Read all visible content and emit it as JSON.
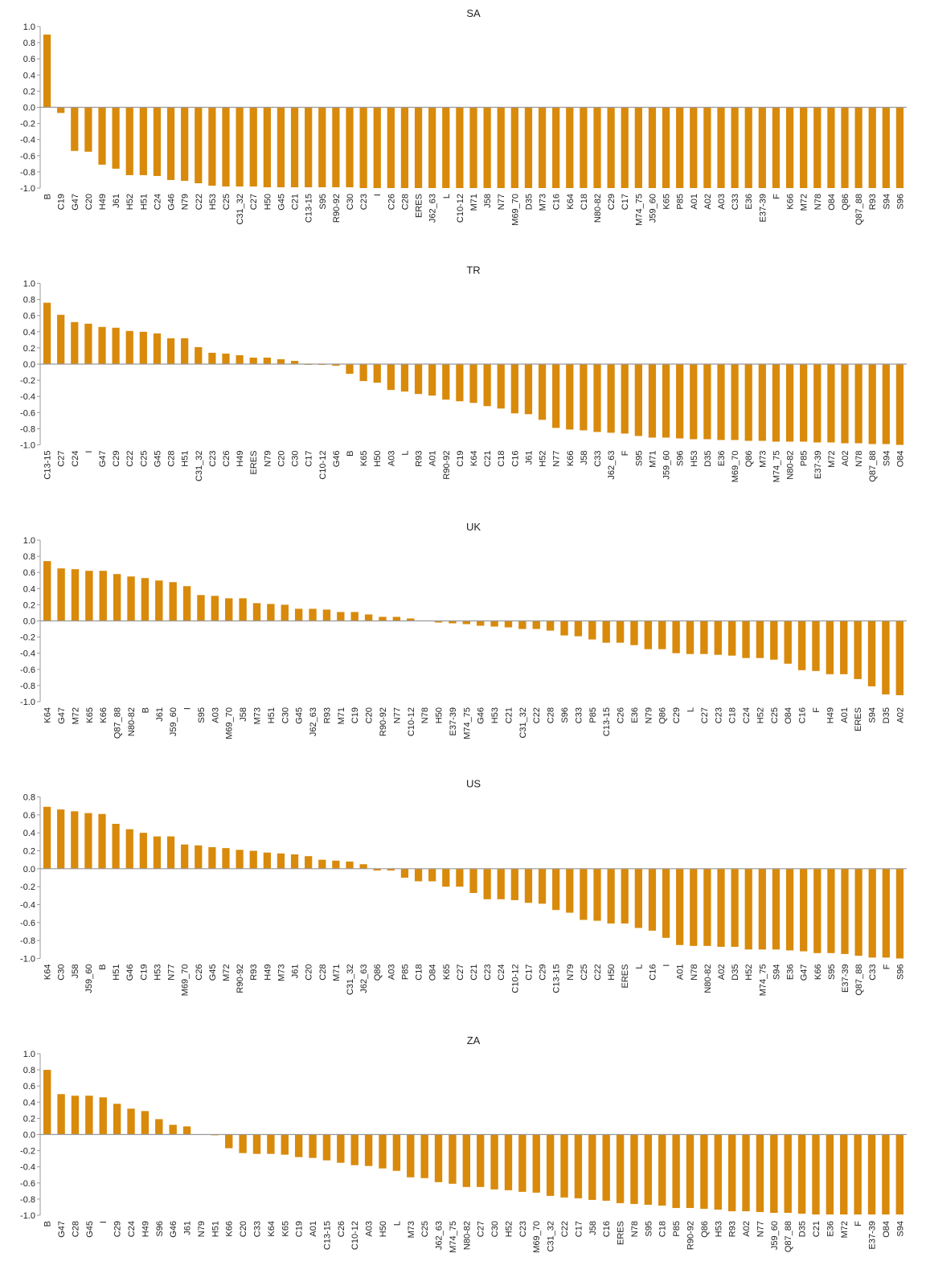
{
  "chart_data": [
    {
      "type": "bar",
      "title": "SA",
      "color": "#d98a0b",
      "categories": [
        "B",
        "C19",
        "G47",
        "C20",
        "H49",
        "J61",
        "H52",
        "H51",
        "C24",
        "G46",
        "N79",
        "C22",
        "H53",
        "C25",
        "C31_32",
        "C27",
        "H50",
        "G45",
        "C21",
        "C13-15",
        "S95",
        "R90-92",
        "C30",
        "C23",
        "I",
        "C26",
        "C28",
        "ERES",
        "J62_63",
        "L",
        "C10-12",
        "M71",
        "J58",
        "N77",
        "M69_70",
        "D35",
        "M73",
        "C16",
        "K64",
        "C18",
        "N80-82",
        "C29",
        "C17",
        "M74_75",
        "J59_60",
        "K65",
        "P85",
        "A01",
        "A02",
        "A03",
        "C33",
        "E36",
        "E37-39",
        "F",
        "K66",
        "M72",
        "N78",
        "O84",
        "Q86",
        "Q87_88",
        "R93",
        "S94",
        "S96"
      ],
      "values": [
        0.9,
        -0.07,
        -0.54,
        -0.55,
        -0.71,
        -0.76,
        -0.84,
        -0.84,
        -0.85,
        -0.9,
        -0.91,
        -0.94,
        -0.97,
        -0.98,
        -0.98,
        -0.98,
        -0.99,
        -0.99,
        -0.99,
        -0.99,
        -0.99,
        -0.99,
        -0.99,
        -1.0,
        -1.0,
        -1.0,
        -1.0,
        -1.0,
        -1.0,
        -1.0,
        -1.0,
        -1.0,
        -1.0,
        -1.0,
        -1.0,
        -1.0,
        -1.0,
        -1.0,
        -1.0,
        -1.0,
        -1.0,
        -1.0,
        -1.0,
        -1.0,
        -1.0,
        -1.0,
        -1.0,
        -1.0,
        -1.0,
        -1.0,
        -1.0,
        -1.0,
        -1.0,
        -1.0,
        -1.0,
        -1.0,
        -1.0,
        -1.0,
        -1.0,
        -1.0,
        -1.0,
        -1.0,
        -1.0
      ],
      "ylim": [
        -1.0,
        1.0
      ],
      "yticks": [
        {
          "value": 1.0,
          "label": "1.0"
        },
        {
          "value": 0.8,
          "label": "0.8"
        },
        {
          "value": 0.6,
          "label": "0.6"
        },
        {
          "value": 0.4,
          "label": "0.4"
        },
        {
          "value": 0.2,
          "label": "0.2"
        },
        {
          "value": 0,
          "label": "0.0"
        },
        {
          "value": -0.2,
          "label": "-0.2"
        },
        {
          "value": -0.4,
          "label": "-0.4"
        },
        {
          "value": -0.6,
          "label": "-0.6"
        },
        {
          "value": -0.8,
          "label": "-0.8"
        },
        {
          "value": -1.0,
          "label": "-1.0"
        }
      ]
    },
    {
      "type": "bar",
      "title": "TR",
      "color": "#d98a0b",
      "categories": [
        "C13-15",
        "C27",
        "C24",
        "I",
        "G47",
        "C29",
        "C22",
        "C25",
        "G45",
        "C28",
        "H51",
        "C31_32",
        "C23",
        "C26",
        "H49",
        "ERES",
        "N79",
        "C20",
        "C30",
        "C17",
        "C10-12",
        "G46",
        "B",
        "K65",
        "H50",
        "A03",
        "L",
        "R93",
        "A01",
        "R90-92",
        "C19",
        "K64",
        "C21",
        "C18",
        "C16",
        "J61",
        "H52",
        "N77",
        "K66",
        "J58",
        "C33",
        "J62_63",
        "F",
        "S95",
        "M71",
        "J59_60",
        "S96",
        "H53",
        "D35",
        "E36",
        "M69_70",
        "Q86",
        "M73",
        "M74_75",
        "N80-82",
        "P85",
        "E37-39",
        "M72",
        "A02",
        "N78",
        "Q87_88",
        "S94",
        "O84"
      ],
      "values": [
        0.76,
        0.61,
        0.52,
        0.5,
        0.46,
        0.45,
        0.41,
        0.4,
        0.38,
        0.32,
        0.32,
        0.21,
        0.14,
        0.13,
        0.11,
        0.08,
        0.08,
        0.06,
        0.04,
        -0.01,
        -0.01,
        -0.02,
        -0.12,
        -0.21,
        -0.23,
        -0.32,
        -0.34,
        -0.37,
        -0.39,
        -0.44,
        -0.46,
        -0.48,
        -0.52,
        -0.55,
        -0.61,
        -0.62,
        -0.69,
        -0.79,
        -0.81,
        -0.82,
        -0.84,
        -0.85,
        -0.86,
        -0.89,
        -0.91,
        -0.91,
        -0.92,
        -0.93,
        -0.93,
        -0.94,
        -0.94,
        -0.95,
        -0.95,
        -0.96,
        -0.96,
        -0.96,
        -0.97,
        -0.97,
        -0.98,
        -0.98,
        -0.99,
        -0.99,
        -1.0
      ],
      "ylim": [
        -1.0,
        1.0
      ],
      "yticks": [
        {
          "value": 1.0,
          "label": "1.0"
        },
        {
          "value": 0.8,
          "label": "0.8"
        },
        {
          "value": 0.6,
          "label": "0.6"
        },
        {
          "value": 0.4,
          "label": "0.4"
        },
        {
          "value": 0.2,
          "label": "0.2"
        },
        {
          "value": 0,
          "label": "0.0"
        },
        {
          "value": -0.2,
          "label": "-0.2"
        },
        {
          "value": -0.4,
          "label": "-0.4"
        },
        {
          "value": -0.6,
          "label": "-0.6"
        },
        {
          "value": -0.8,
          "label": "-0.8"
        },
        {
          "value": -1.0,
          "label": "-1.0"
        }
      ]
    },
    {
      "type": "bar",
      "title": "UK",
      "color": "#d98a0b",
      "categories": [
        "K64",
        "G47",
        "M72",
        "K65",
        "K66",
        "Q87_88",
        "N80-82",
        "B",
        "J61",
        "J59_60",
        "I",
        "S95",
        "A03",
        "M69_70",
        "J58",
        "M73",
        "H51",
        "C30",
        "G45",
        "J62_63",
        "R93",
        "M71",
        "C19",
        "C20",
        "R90-92",
        "N77",
        "C10-12",
        "N78",
        "H50",
        "E37-39",
        "M74_75",
        "G46",
        "H53",
        "C21",
        "C31_32",
        "C22",
        "C28",
        "S96",
        "C33",
        "P85",
        "C13-15",
        "C26",
        "E36",
        "N79",
        "Q86",
        "C29",
        "L",
        "C27",
        "C23",
        "C18",
        "C24",
        "H52",
        "C25",
        "O84",
        "C16",
        "F",
        "H49",
        "A01",
        "ERES",
        "S94",
        "D35",
        "A02"
      ],
      "values": [
        0.74,
        0.65,
        0.64,
        0.62,
        0.62,
        0.58,
        0.55,
        0.53,
        0.5,
        0.48,
        0.43,
        0.32,
        0.31,
        0.28,
        0.28,
        0.22,
        0.21,
        0.2,
        0.15,
        0.15,
        0.14,
        0.11,
        0.11,
        0.08,
        0.05,
        0.05,
        0.03,
        0.0,
        -0.02,
        -0.03,
        -0.04,
        -0.06,
        -0.07,
        -0.08,
        -0.1,
        -0.1,
        -0.12,
        -0.18,
        -0.19,
        -0.23,
        -0.27,
        -0.27,
        -0.3,
        -0.35,
        -0.35,
        -0.4,
        -0.41,
        -0.41,
        -0.42,
        -0.43,
        -0.46,
        -0.46,
        -0.48,
        -0.53,
        -0.61,
        -0.62,
        -0.66,
        -0.66,
        -0.72,
        -0.81,
        -0.91,
        -0.92
      ],
      "ylim": [
        -1.0,
        1.0
      ],
      "yticks": [
        {
          "value": 1.0,
          "label": "1.0"
        },
        {
          "value": 0.8,
          "label": "0.8"
        },
        {
          "value": 0.6,
          "label": "0.6"
        },
        {
          "value": 0.4,
          "label": "0.4"
        },
        {
          "value": 0.2,
          "label": "0.2"
        },
        {
          "value": 0,
          "label": "0.0"
        },
        {
          "value": -0.2,
          "label": "-0.2"
        },
        {
          "value": -0.4,
          "label": "-0.4"
        },
        {
          "value": -0.6,
          "label": "-0.6"
        },
        {
          "value": -0.8,
          "label": "-0.8"
        },
        {
          "value": -1.0,
          "label": "-1.0"
        }
      ]
    },
    {
      "type": "bar",
      "title": "US",
      "color": "#d98a0b",
      "categories": [
        "K64",
        "C30",
        "J58",
        "J59_60",
        "B",
        "H51",
        "G46",
        "C19",
        "H53",
        "N77",
        "M69_70",
        "C26",
        "G45",
        "M72",
        "R90-92",
        "R93",
        "H49",
        "M73",
        "J61",
        "C20",
        "C28",
        "M71",
        "C31_32",
        "J62_63",
        "Q86",
        "A03",
        "P85",
        "C18",
        "O84",
        "K65",
        "C27",
        "C21",
        "C23",
        "C24",
        "C10-12",
        "C17",
        "C29",
        "C13-15",
        "N79",
        "C25",
        "C22",
        "H50",
        "ERES",
        "L",
        "C16",
        "I",
        "A01",
        "N78",
        "N80-82",
        "A02",
        "D35",
        "H52",
        "M74_75",
        "S94",
        "E36",
        "G47",
        "K66",
        "S95",
        "E37-39",
        "Q87_88",
        "C33",
        "F",
        "S96"
      ],
      "values": [
        0.69,
        0.66,
        0.64,
        0.62,
        0.61,
        0.5,
        0.44,
        0.4,
        0.36,
        0.36,
        0.27,
        0.26,
        0.24,
        0.23,
        0.21,
        0.2,
        0.18,
        0.17,
        0.16,
        0.14,
        0.1,
        0.09,
        0.08,
        0.05,
        -0.02,
        -0.02,
        -0.1,
        -0.14,
        -0.14,
        -0.2,
        -0.2,
        -0.27,
        -0.34,
        -0.34,
        -0.35,
        -0.38,
        -0.39,
        -0.46,
        -0.49,
        -0.57,
        -0.58,
        -0.61,
        -0.61,
        -0.66,
        -0.69,
        -0.77,
        -0.85,
        -0.86,
        -0.86,
        -0.87,
        -0.87,
        -0.9,
        -0.9,
        -0.9,
        -0.91,
        -0.92,
        -0.94,
        -0.94,
        -0.95,
        -0.97,
        -0.99,
        -0.99,
        -1.0
      ],
      "ylim": [
        -1.0,
        0.8
      ],
      "yticks": [
        {
          "value": 0.8,
          "label": "0.8"
        },
        {
          "value": 0.6,
          "label": "0.6"
        },
        {
          "value": 0.4,
          "label": "0.4"
        },
        {
          "value": 0.2,
          "label": "0.2"
        },
        {
          "value": 0,
          "label": "0.0"
        },
        {
          "value": -0.2,
          "label": "-0.2"
        },
        {
          "value": -0.4,
          "label": "-0.4"
        },
        {
          "value": -0.6,
          "label": "-0.6"
        },
        {
          "value": -0.8,
          "label": "-0.8"
        },
        {
          "value": -1.0,
          "label": "-1.0"
        }
      ]
    },
    {
      "type": "bar",
      "title": "ZA",
      "color": "#d98a0b",
      "categories": [
        "B",
        "G47",
        "C28",
        "G45",
        "I",
        "C29",
        "C24",
        "H49",
        "S96",
        "G46",
        "J61",
        "N79",
        "H51",
        "K66",
        "C20",
        "C33",
        "K64",
        "K65",
        "C19",
        "A01",
        "C13-15",
        "C26",
        "C10-12",
        "A03",
        "H50",
        "L",
        "M73",
        "C25",
        "J62_63",
        "M74_75",
        "N80-82",
        "C27",
        "C30",
        "H52",
        "C23",
        "M69_70",
        "C31_32",
        "C22",
        "C17",
        "J58",
        "C16",
        "ERES",
        "N78",
        "S95",
        "C18",
        "P85",
        "R90-92",
        "Q86",
        "H53",
        "R93",
        "A02",
        "N77",
        "J59_60",
        "Q87_88",
        "D35",
        "C21",
        "E36",
        "M72",
        "F",
        "E37-39",
        "O84",
        "S94"
      ],
      "values": [
        0.8,
        0.5,
        0.48,
        0.48,
        0.46,
        0.38,
        0.32,
        0.29,
        0.19,
        0.12,
        0.1,
        0.0,
        -0.01,
        -0.17,
        -0.23,
        -0.24,
        -0.24,
        -0.25,
        -0.28,
        -0.29,
        -0.32,
        -0.35,
        -0.38,
        -0.39,
        -0.42,
        -0.45,
        -0.53,
        -0.54,
        -0.59,
        -0.61,
        -0.65,
        -0.65,
        -0.68,
        -0.69,
        -0.71,
        -0.72,
        -0.76,
        -0.78,
        -0.79,
        -0.81,
        -0.82,
        -0.85,
        -0.86,
        -0.87,
        -0.88,
        -0.91,
        -0.91,
        -0.92,
        -0.93,
        -0.95,
        -0.95,
        -0.96,
        -0.97,
        -0.97,
        -0.98,
        -0.99,
        -0.99,
        -0.99,
        -0.99,
        -0.99,
        -0.99,
        -0.99
      ],
      "ylim": [
        -1.0,
        1.0
      ],
      "yticks": [
        {
          "value": 1.0,
          "label": "1.0"
        },
        {
          "value": 0.8,
          "label": "0.8"
        },
        {
          "value": 0.6,
          "label": "0.6"
        },
        {
          "value": 0.4,
          "label": "0.4"
        },
        {
          "value": 0.2,
          "label": "0.2"
        },
        {
          "value": 0,
          "label": "0.0"
        },
        {
          "value": -0.2,
          "label": "-0.2"
        },
        {
          "value": -0.4,
          "label": "-0.4"
        },
        {
          "value": -0.6,
          "label": "-0.6"
        },
        {
          "value": -0.8,
          "label": "-0.8"
        },
        {
          "value": -1.0,
          "label": "-1.0"
        }
      ]
    }
  ]
}
